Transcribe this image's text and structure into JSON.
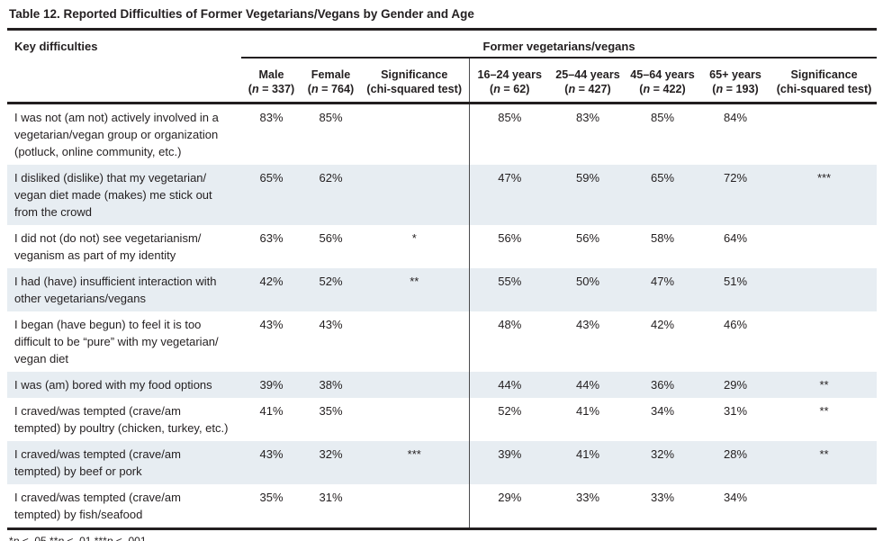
{
  "table": {
    "title": "Table 12. Reported Difficulties of Former Vegetarians/Vegans by Gender and Age",
    "stub_header": "Key difficulties",
    "span_header": "Former vegetarians/vegans",
    "columns": [
      {
        "label": "Male",
        "sub_segments": [
          {
            "text": "(",
            "italic": false
          },
          {
            "text": "n",
            "italic": true
          },
          {
            "text": " = 337)",
            "italic": false
          }
        ]
      },
      {
        "label": "Female",
        "sub_segments": [
          {
            "text": "(",
            "italic": false
          },
          {
            "text": "n",
            "italic": true
          },
          {
            "text": " = 764)",
            "italic": false
          }
        ]
      },
      {
        "label": "Significance",
        "sub_segments": [
          {
            "text": "(chi-squared test)",
            "italic": false
          }
        ]
      },
      {
        "label": "16–24 years",
        "sub_segments": [
          {
            "text": "(",
            "italic": false
          },
          {
            "text": "n",
            "italic": true
          },
          {
            "text": " = 62)",
            "italic": false
          }
        ]
      },
      {
        "label": "25–44 years",
        "sub_segments": [
          {
            "text": "(",
            "italic": false
          },
          {
            "text": "n",
            "italic": true
          },
          {
            "text": " = 427)",
            "italic": false
          }
        ]
      },
      {
        "label": "45–64 years",
        "sub_segments": [
          {
            "text": "(",
            "italic": false
          },
          {
            "text": "n",
            "italic": true
          },
          {
            "text": " = 422)",
            "italic": false
          }
        ]
      },
      {
        "label": "65+ years",
        "sub_segments": [
          {
            "text": "(",
            "italic": false
          },
          {
            "text": "n",
            "italic": true
          },
          {
            "text": " = 193)",
            "italic": false
          }
        ]
      },
      {
        "label": "Significance",
        "sub_segments": [
          {
            "text": "(chi-squared test)",
            "italic": false
          }
        ]
      }
    ],
    "rows": [
      {
        "difficulty_lines": [
          "I was not (am not) actively involved in a",
          "vegetarian/vegan group or organization",
          "(potluck, online community, etc.)"
        ],
        "values": [
          "83%",
          "85%",
          "",
          "85%",
          "83%",
          "85%",
          "84%",
          ""
        ]
      },
      {
        "difficulty_lines": [
          "I disliked (dislike) that my vegetarian/",
          "vegan diet made (makes) me stick out",
          "from the crowd"
        ],
        "values": [
          "65%",
          "62%",
          "",
          "47%",
          "59%",
          "65%",
          "72%",
          "***"
        ]
      },
      {
        "difficulty_lines": [
          "I did not (do not) see vegetarianism/",
          "veganism as part of my identity"
        ],
        "values": [
          "63%",
          "56%",
          "*",
          "56%",
          "56%",
          "58%",
          "64%",
          ""
        ]
      },
      {
        "difficulty_lines": [
          "I had (have) insufficient interaction with",
          "other vegetarians/vegans"
        ],
        "values": [
          "42%",
          "52%",
          "**",
          "55%",
          "50%",
          "47%",
          "51%",
          ""
        ]
      },
      {
        "difficulty_lines": [
          "I began (have begun) to feel it is too",
          "difficult to be “pure” with my vegetarian/",
          "vegan diet"
        ],
        "values": [
          "43%",
          "43%",
          "",
          "48%",
          "43%",
          "42%",
          "46%",
          ""
        ]
      },
      {
        "difficulty_lines": [
          "I was (am) bored with my food options"
        ],
        "values": [
          "39%",
          "38%",
          "",
          "44%",
          "44%",
          "36%",
          "29%",
          "**"
        ]
      },
      {
        "difficulty_lines": [
          "I craved/was tempted (crave/am",
          "tempted) by poultry (chicken, turkey, etc.)"
        ],
        "values": [
          "41%",
          "35%",
          "",
          "52%",
          "41%",
          "34%",
          "31%",
          "**"
        ]
      },
      {
        "difficulty_lines": [
          "I craved/was tempted (crave/am",
          "tempted) by beef or pork"
        ],
        "values": [
          "43%",
          "32%",
          "***",
          "39%",
          "41%",
          "32%",
          "28%",
          "**"
        ]
      },
      {
        "difficulty_lines": [
          "I craved/was tempted (crave/am",
          "tempted) by fish/seafood"
        ],
        "values": [
          "35%",
          "31%",
          "",
          "29%",
          "33%",
          "33%",
          "34%",
          ""
        ]
      }
    ],
    "colors": {
      "stripe": "#e7edf2",
      "rule": "#231f20",
      "divider": "#4b4b4d"
    }
  },
  "footnote_segments": [
    {
      "text": "*",
      "italic": false
    },
    {
      "text": "p",
      "italic": true
    },
    {
      "text": " < .05 **",
      "italic": false
    },
    {
      "text": "p",
      "italic": true
    },
    {
      "text": " < .01 ***",
      "italic": false
    },
    {
      "text": "p",
      "italic": true
    },
    {
      "text": " < .001",
      "italic": false
    }
  ]
}
